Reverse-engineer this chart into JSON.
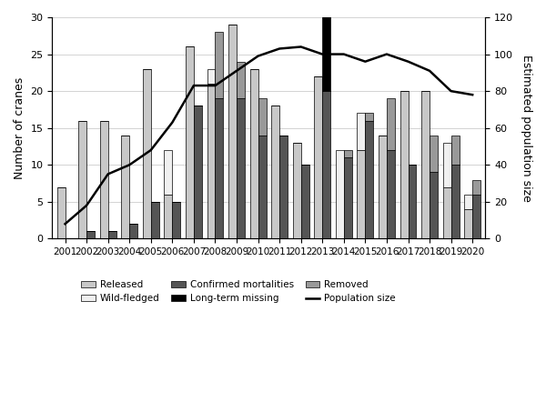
{
  "years": [
    2001,
    2002,
    2003,
    2004,
    2005,
    2006,
    2007,
    2008,
    2009,
    2010,
    2011,
    2012,
    2013,
    2014,
    2015,
    2016,
    2017,
    2018,
    2019,
    2020
  ],
  "released": [
    7,
    16,
    16,
    14,
    23,
    6,
    26,
    21,
    29,
    23,
    18,
    13,
    22,
    0,
    12,
    14,
    20,
    20,
    7,
    4
  ],
  "wild_fledged": [
    0,
    0,
    0,
    0,
    0,
    6,
    0,
    2,
    0,
    0,
    0,
    0,
    0,
    12,
    5,
    0,
    0,
    0,
    6,
    2
  ],
  "conf_mortalities": [
    0,
    1,
    1,
    2,
    5,
    5,
    18,
    19,
    19,
    14,
    14,
    10,
    20,
    11,
    16,
    12,
    10,
    9,
    10,
    6
  ],
  "long_term_missing": [
    0,
    0,
    0,
    0,
    0,
    0,
    0,
    0,
    0,
    0,
    0,
    0,
    29,
    0,
    0,
    0,
    0,
    0,
    0,
    0
  ],
  "removed": [
    0,
    0,
    0,
    0,
    0,
    0,
    0,
    9,
    5,
    5,
    0,
    0,
    0,
    1,
    1,
    7,
    0,
    5,
    4,
    2
  ],
  "population_size": [
    8,
    18,
    35,
    40,
    48,
    63,
    83,
    83,
    91,
    99,
    103,
    104,
    100,
    100,
    96,
    100,
    96,
    91,
    80,
    78
  ],
  "colors": {
    "released": "#c8c8c8",
    "wild_fledged": "#f0f0f0",
    "conf_mortalities": "#555555",
    "long_term_missing": "#000000",
    "removed": "#999999",
    "population_line": "#000000"
  },
  "ylim_left": [
    0,
    30
  ],
  "ylim_right": [
    0,
    120
  ],
  "ylabel_left": "Number of cranes",
  "ylabel_right": "Estimated population size",
  "figsize": [
    6.0,
    4.42
  ],
  "dpi": 100
}
